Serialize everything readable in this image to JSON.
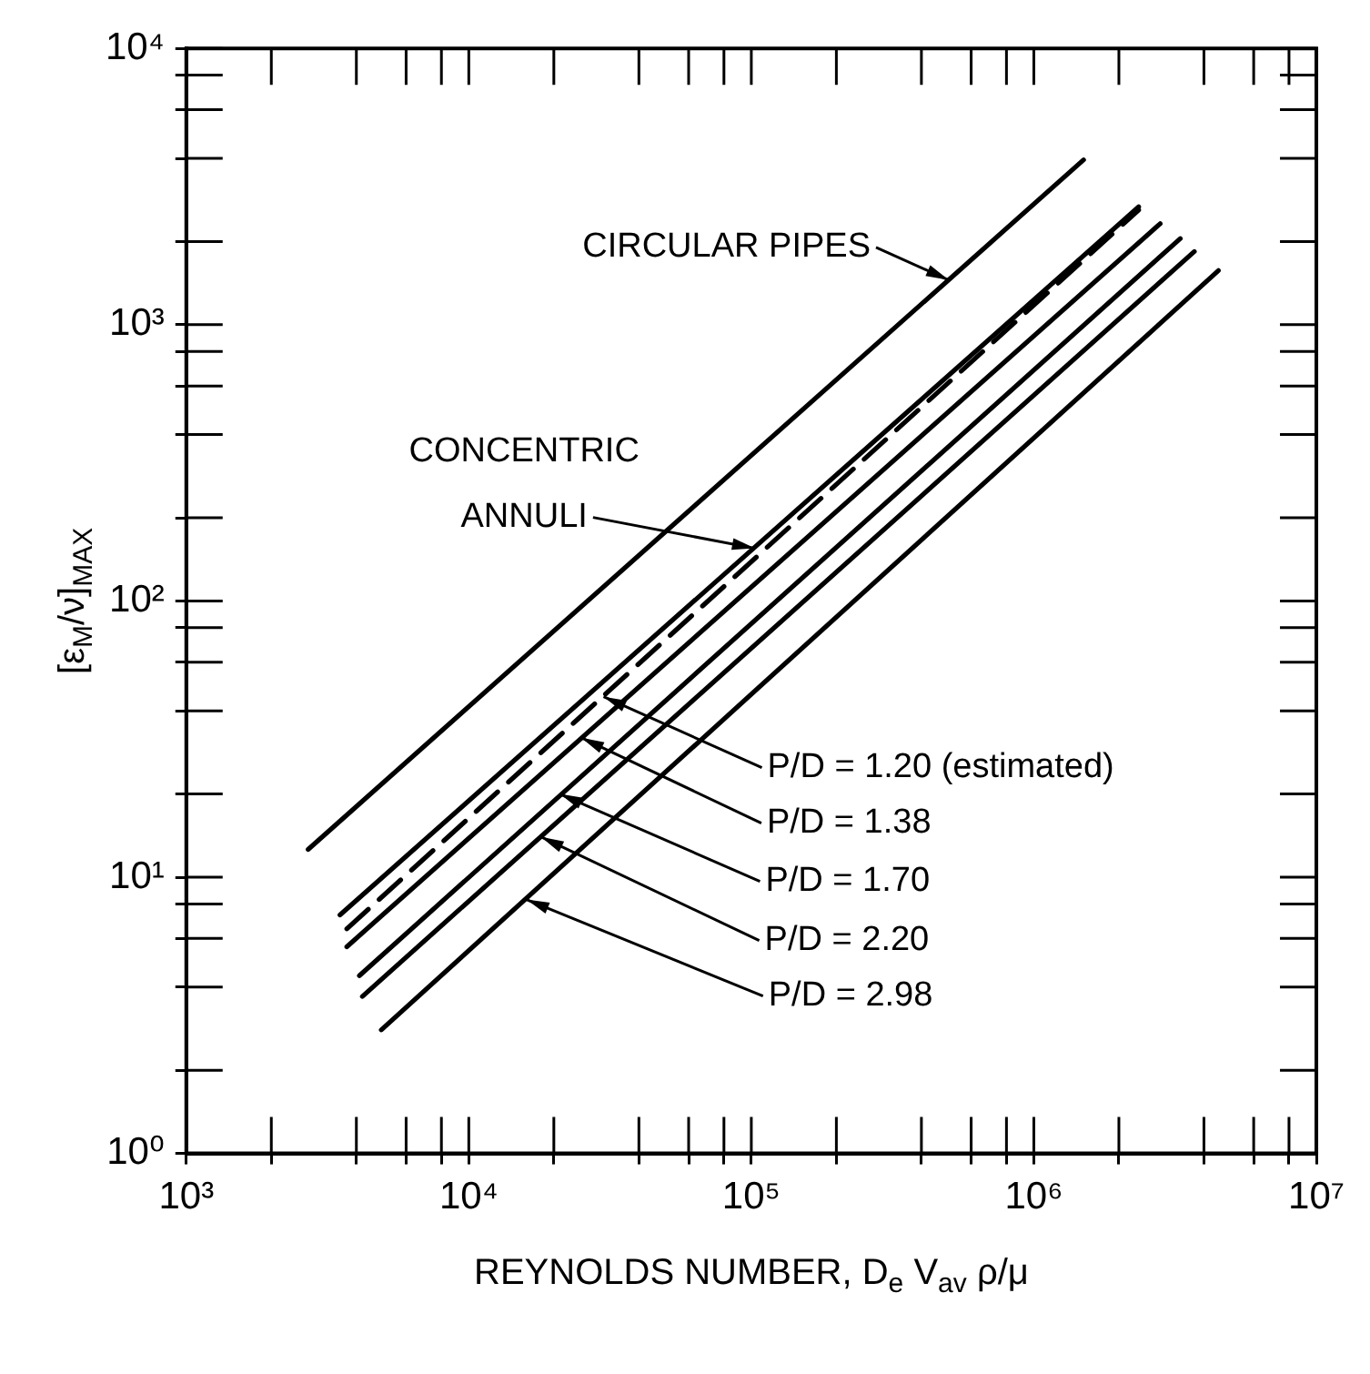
{
  "chart_data": {
    "type": "line",
    "log": "xy",
    "marker": "none",
    "xlabel": "REYNOLDS NUMBER, D$_{e}$ V$_{av}$ ρ/μ",
    "ylabel": "[ε$_{M}$/ν]$_{MAX}$",
    "xlim": [
      1000,
      10000000
    ],
    "ylim": [
      1,
      10000
    ],
    "xticks": [
      {
        "value": 1000,
        "label": "10³"
      },
      {
        "value": 2000,
        "label": null
      },
      {
        "value": 4000,
        "label": null
      },
      {
        "value": 6000,
        "label": null
      },
      {
        "value": 8000,
        "label": null
      },
      {
        "value": 10000,
        "label": "10⁴"
      },
      {
        "value": 20000,
        "label": null
      },
      {
        "value": 40000,
        "label": null
      },
      {
        "value": 60000,
        "label": null
      },
      {
        "value": 80000,
        "label": null
      },
      {
        "value": 100000,
        "label": "10⁵"
      },
      {
        "value": 200000,
        "label": null
      },
      {
        "value": 400000,
        "label": null
      },
      {
        "value": 600000,
        "label": null
      },
      {
        "value": 800000,
        "label": null
      },
      {
        "value": 1000000,
        "label": "10⁶"
      },
      {
        "value": 2000000,
        "label": null
      },
      {
        "value": 4000000,
        "label": null
      },
      {
        "value": 6000000,
        "label": null
      },
      {
        "value": 8000000,
        "label": null
      },
      {
        "value": 10000000,
        "label": "10⁷"
      }
    ],
    "yticks": [
      {
        "value": 1,
        "label": "10⁰"
      },
      {
        "value": 2,
        "label": null
      },
      {
        "value": 4,
        "label": null
      },
      {
        "value": 6,
        "label": null
      },
      {
        "value": 8,
        "label": null
      },
      {
        "value": 10,
        "label": "10¹"
      },
      {
        "value": 20,
        "label": null
      },
      {
        "value": 40,
        "label": null
      },
      {
        "value": 60,
        "label": null
      },
      {
        "value": 80,
        "label": null
      },
      {
        "value": 100,
        "label": "10²"
      },
      {
        "value": 200,
        "label": null
      },
      {
        "value": 400,
        "label": null
      },
      {
        "value": 600,
        "label": null
      },
      {
        "value": 800,
        "label": null
      },
      {
        "value": 1000,
        "label": "10³"
      },
      {
        "value": 2000,
        "label": null
      },
      {
        "value": 4000,
        "label": null
      },
      {
        "value": 6000,
        "label": null
      },
      {
        "value": 8000,
        "label": null
      },
      {
        "value": 10000,
        "label": "10⁴"
      }
    ],
    "series": [
      {
        "color": "#000000",
        "x": [
          2700,
          1500000
        ],
        "values": [
          12.6,
          3950
        ]
      },
      {
        "color": "#000000",
        "x": [
          3500,
          2350000
        ],
        "values": [
          7.3,
          2670
        ]
      },
      {
        "color": "#000000",
        "line_style": "dashed",
        "x": [
          3700,
          2350000
        ],
        "values": [
          6.5,
          2600
        ]
      },
      {
        "color": "#000000",
        "x": [
          3700,
          2800000
        ],
        "values": [
          5.6,
          2320
        ]
      },
      {
        "color": "#000000",
        "x": [
          4100,
          3300000
        ],
        "values": [
          4.4,
          2050
        ]
      },
      {
        "color": "#000000",
        "x": [
          4200,
          3700000
        ],
        "values": [
          3.7,
          1840
        ]
      },
      {
        "color": "#000000",
        "x": [
          4900,
          4500000
        ],
        "values": [
          2.8,
          1570
        ]
      }
    ],
    "annotations": [
      {
        "text": "CIRCULAR PIPES",
        "x": 500000,
        "y": 1450
      },
      {
        "text": "CONCENTRIC\nANNULI",
        "x": 103000,
        "y": 155
      },
      {
        "text": "P/D = 1.20 (estimated)",
        "x": 30000,
        "y": 45
      },
      {
        "text": "P/D = 1.38",
        "x": 25000,
        "y": 32
      },
      {
        "text": "P/D = 1.70",
        "x": 21000,
        "y": 20
      },
      {
        "text": "P/D = 2.20",
        "x": 18000,
        "y": 14
      },
      {
        "text": "P/D = 2.98",
        "x": 16000,
        "y": 8.3
      }
    ]
  }
}
